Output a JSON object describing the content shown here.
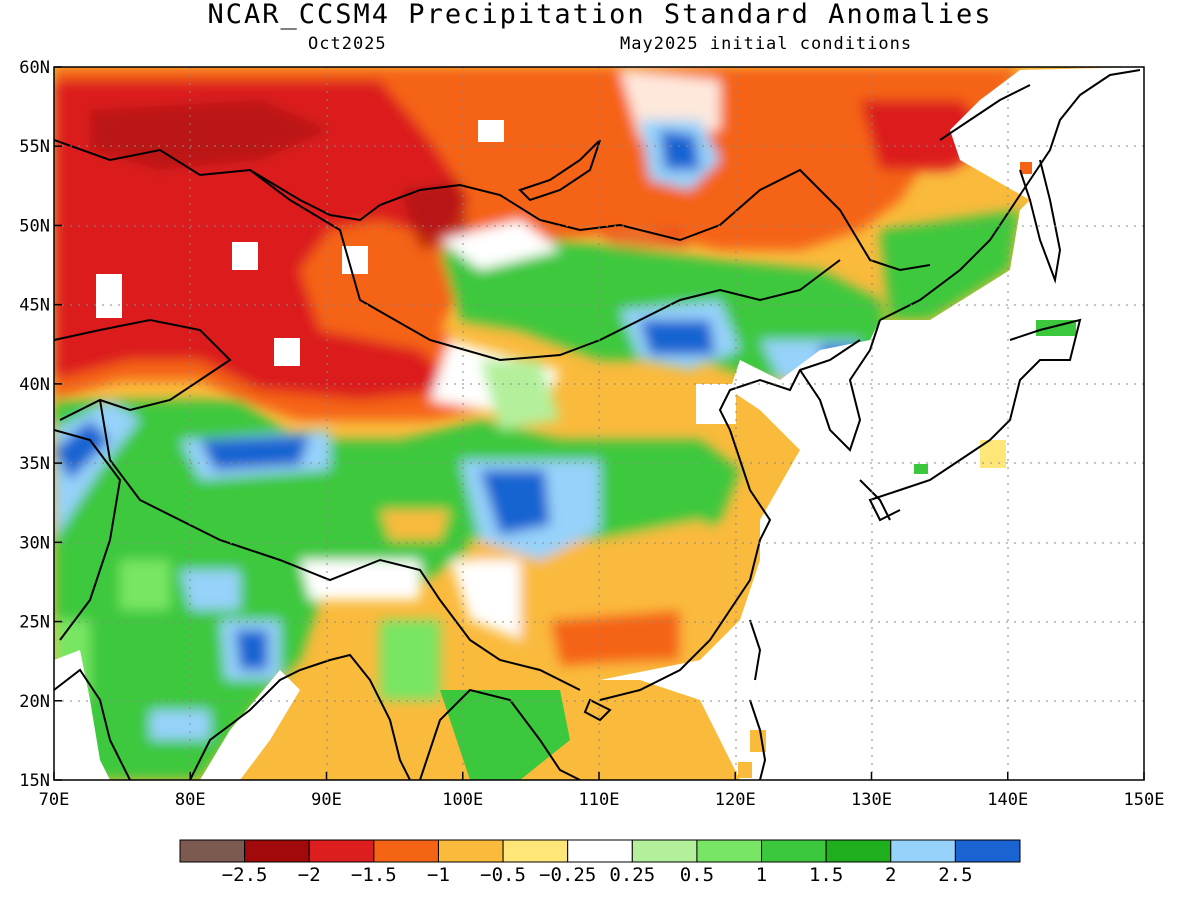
{
  "title": "NCAR_CCSM4 Precipitation Standard Anomalies",
  "valid_month": "Oct2025",
  "init_conditions": "May2025 initial conditions",
  "map": {
    "lon_range": [
      70,
      150
    ],
    "lat_range": [
      15,
      60
    ],
    "lon_ticks": [
      "70E",
      "80E",
      "90E",
      "100E",
      "110E",
      "120E",
      "130E",
      "140E",
      "150E"
    ],
    "lat_ticks": [
      "60N",
      "55N",
      "50N",
      "45N",
      "40N",
      "35N",
      "30N",
      "25N",
      "20N",
      "15N"
    ],
    "grid": "dotted"
  },
  "colorbar": {
    "colors": [
      "#7d5a50",
      "#a00a0a",
      "#dc1e1e",
      "#f56414",
      "#faba3c",
      "#ffe678",
      "#ffffff",
      "#b4f09b",
      "#78e664",
      "#3cc83c",
      "#1eae1e",
      "#96d2fa",
      "#1964d2"
    ],
    "labels": [
      "−2.5",
      "−2",
      "−1.5",
      "−1",
      "−0.5",
      "−0.25",
      "0.25",
      "0.5",
      "1",
      "1.5",
      "2",
      "2.5"
    ]
  }
}
